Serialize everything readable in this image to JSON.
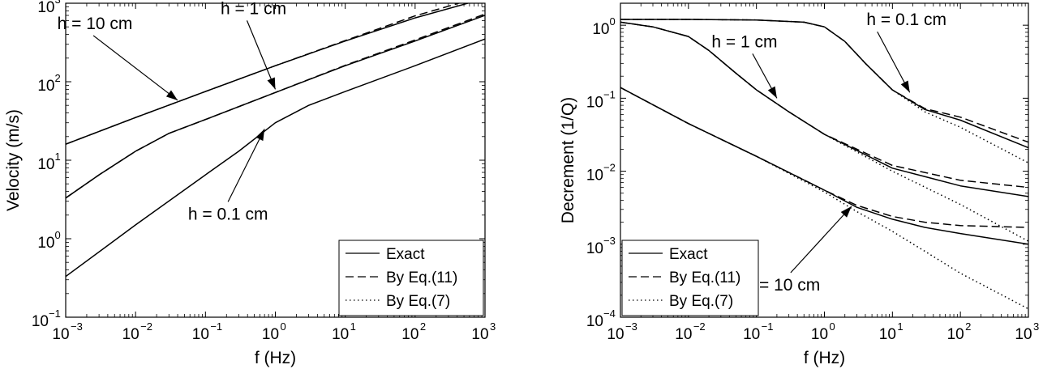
{
  "chart_data": [
    {
      "type": "line",
      "xlabel": "f (Hz)",
      "ylabel": "Velocity (m/s)",
      "xscale": "log",
      "yscale": "log",
      "xlim": [
        0.001,
        1000
      ],
      "ylim": [
        0.1,
        1000
      ],
      "x_ticks": [
        "10^-3",
        "10^-2",
        "10^-1",
        "10^0",
        "10^1",
        "10^2",
        "10^3"
      ],
      "y_ticks": [
        "10^-1",
        "10^0",
        "10^1",
        "10^2",
        "10^3"
      ],
      "grid": false,
      "legend": {
        "placement": "bottom-right",
        "entries": [
          {
            "label": "Exact",
            "style": "solid"
          },
          {
            "label": "By Eq.(11)",
            "style": "dashed"
          },
          {
            "label": "By Eq.(7)",
            "style": "dotted"
          }
        ]
      },
      "annotations": [
        {
          "text": "h = 10 cm",
          "x": 0.04,
          "y": 58
        },
        {
          "text": "h = 1 cm",
          "x": 1.0,
          "y": 80
        },
        {
          "text": "h = 0.1 cm",
          "x": 0.7,
          "y": 25
        }
      ],
      "series": [
        {
          "group": "h = 10 cm",
          "method": "Exact",
          "x": [
            0.001,
            0.01,
            0.1,
            1,
            10,
            100,
            1000
          ],
          "y": [
            16,
            35,
            75,
            160,
            330,
            650,
            1150
          ]
        },
        {
          "group": "h = 10 cm",
          "method": "By Eq.(11)",
          "x": [
            0.001,
            0.01,
            0.1,
            1,
            10,
            100,
            1000
          ],
          "y": [
            16,
            35,
            75,
            160,
            335,
            690,
            1250
          ]
        },
        {
          "group": "h = 1 cm",
          "method": "Exact",
          "x": [
            0.001,
            0.003,
            0.01,
            0.03,
            0.1,
            1,
            10,
            100,
            1000
          ],
          "y": [
            3.3,
            6.5,
            13,
            22,
            33,
            73,
            160,
            330,
            700
          ]
        },
        {
          "group": "h = 1 cm",
          "method": "By Eq.(11)",
          "x": [
            0.001,
            0.003,
            0.01,
            0.03,
            0.1,
            1,
            10,
            100,
            1000
          ],
          "y": [
            3.3,
            6.5,
            13,
            22,
            33,
            73,
            162,
            340,
            730
          ]
        },
        {
          "group": "h = 0.1 cm",
          "method": "Exact",
          "x": [
            0.001,
            0.01,
            0.1,
            0.3,
            1,
            3,
            10,
            100,
            1000
          ],
          "y": [
            0.33,
            1.5,
            6.5,
            13,
            30,
            50,
            75,
            160,
            350
          ]
        }
      ]
    },
    {
      "type": "line",
      "xlabel": "f (Hz)",
      "ylabel": "Decrement (1/Q)",
      "xscale": "log",
      "yscale": "log",
      "xlim": [
        0.001,
        1000
      ],
      "ylim": [
        0.0001,
        2
      ],
      "x_ticks": [
        "10^-3",
        "10^-2",
        "10^-1",
        "10^0",
        "10^1",
        "10^2",
        "10^3"
      ],
      "y_ticks": [
        "10^-4",
        "10^-3",
        "10^-2",
        "10^-1",
        "10^0"
      ],
      "grid": false,
      "legend": {
        "placement": "bottom-left",
        "entries": [
          {
            "label": "Exact",
            "style": "solid"
          },
          {
            "label": "By Eq.(11)",
            "style": "dashed"
          },
          {
            "label": "By Eq.(7)",
            "style": "dotted"
          }
        ]
      },
      "annotations": [
        {
          "text": "h = 0.1 cm",
          "x": 18,
          "y": 0.12
        },
        {
          "text": "h = 1 cm",
          "x": 0.2,
          "y": 0.1
        },
        {
          "text": "h = 10 cm",
          "x": 2.5,
          "y": 0.0033
        }
      ],
      "series": [
        {
          "group": "h = 0.1 cm",
          "method": "Exact",
          "x": [
            0.001,
            0.01,
            0.1,
            0.5,
            1,
            2,
            4,
            10,
            30,
            100,
            1000
          ],
          "y": [
            1.2,
            1.2,
            1.18,
            1.1,
            0.95,
            0.6,
            0.3,
            0.13,
            0.07,
            0.05,
            0.021
          ]
        },
        {
          "group": "h = 0.1 cm",
          "method": "By Eq.(11)",
          "x": [
            0.001,
            0.01,
            0.1,
            0.5,
            1,
            2,
            4,
            10,
            30,
            100,
            1000
          ],
          "y": [
            1.2,
            1.2,
            1.18,
            1.1,
            0.95,
            0.6,
            0.3,
            0.13,
            0.072,
            0.055,
            0.025
          ]
        },
        {
          "group": "h = 0.1 cm",
          "method": "By Eq.(7)",
          "x": [
            0.001,
            0.01,
            0.1,
            0.5,
            1,
            2,
            4,
            10,
            30,
            100,
            1000
          ],
          "y": [
            1.2,
            1.2,
            1.18,
            1.1,
            0.95,
            0.6,
            0.3,
            0.13,
            0.065,
            0.04,
            0.013
          ]
        },
        {
          "group": "h = 1 cm",
          "method": "Exact",
          "x": [
            0.001,
            0.003,
            0.01,
            0.02,
            0.05,
            0.1,
            0.3,
            1,
            10,
            100,
            1000
          ],
          "y": [
            1.1,
            0.95,
            0.7,
            0.45,
            0.22,
            0.13,
            0.065,
            0.032,
            0.011,
            0.0063,
            0.0045
          ]
        },
        {
          "group": "h = 1 cm",
          "method": "By Eq.(11)",
          "x": [
            0.001,
            0.003,
            0.01,
            0.02,
            0.05,
            0.1,
            0.3,
            1,
            10,
            100,
            1000
          ],
          "y": [
            1.1,
            0.95,
            0.7,
            0.45,
            0.22,
            0.13,
            0.065,
            0.032,
            0.012,
            0.0075,
            0.006
          ]
        },
        {
          "group": "h = 1 cm",
          "method": "By Eq.(7)",
          "x": [
            0.001,
            0.003,
            0.01,
            0.02,
            0.05,
            0.1,
            0.3,
            1,
            10,
            100,
            1000
          ],
          "y": [
            1.1,
            0.95,
            0.7,
            0.45,
            0.22,
            0.13,
            0.065,
            0.032,
            0.01,
            0.0035,
            0.0011
          ]
        },
        {
          "group": "h = 10 cm",
          "method": "Exact",
          "x": [
            0.001,
            0.01,
            0.1,
            1,
            3,
            10,
            30,
            100,
            1000
          ],
          "y": [
            0.14,
            0.045,
            0.016,
            0.0055,
            0.0032,
            0.0022,
            0.0017,
            0.0014,
            0.001
          ]
        },
        {
          "group": "h = 10 cm",
          "method": "By Eq.(11)",
          "x": [
            0.001,
            0.01,
            0.1,
            1,
            3,
            10,
            30,
            100,
            1000
          ],
          "y": [
            0.14,
            0.045,
            0.016,
            0.0055,
            0.0034,
            0.0024,
            0.002,
            0.0018,
            0.0017
          ]
        },
        {
          "group": "h = 10 cm",
          "method": "By Eq.(7)",
          "x": [
            0.001,
            0.01,
            0.1,
            1,
            3,
            10,
            30,
            100,
            1000
          ],
          "y": [
            0.14,
            0.045,
            0.016,
            0.0052,
            0.0028,
            0.0015,
            0.0008,
            0.0004,
            0.00013
          ]
        }
      ]
    }
  ]
}
